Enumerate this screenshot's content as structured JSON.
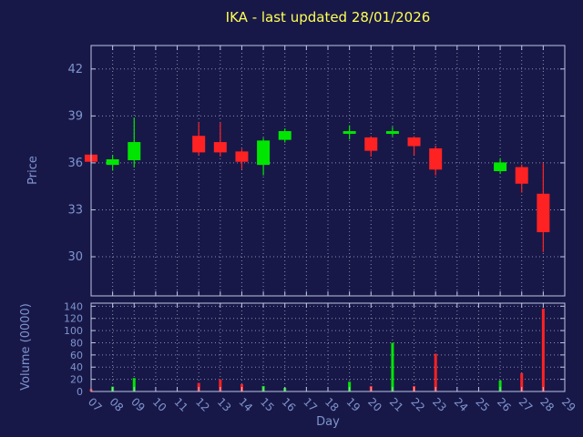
{
  "title": "IKA - last updated 28/01/2026",
  "colors": {
    "background": "#181848",
    "title": "#ffff55",
    "axis_text": "#7d95cf",
    "border": "#bcc6e4",
    "grid": "#9aa2c4",
    "up": "#00e600",
    "down": "#ff2222"
  },
  "chart_data": [
    {
      "type": "candlestick",
      "panel": "price",
      "title": "IKA - last updated 28/01/2026",
      "ylabel": "Price",
      "xlabel": "Day",
      "x_categories": [
        "07",
        "08",
        "09",
        "10",
        "11",
        "12",
        "13",
        "14",
        "15",
        "16",
        "17",
        "18",
        "19",
        "20",
        "21",
        "22",
        "23",
        "24",
        "25",
        "26",
        "27",
        "28",
        "29"
      ],
      "ylim": [
        27.5,
        43.5
      ],
      "y_ticks": [
        30,
        33,
        36,
        39,
        42
      ],
      "grid": true,
      "candles": [
        {
          "day": "07",
          "open": 36.5,
          "high": 36.6,
          "low": 36.0,
          "close": 36.1
        },
        {
          "day": "08",
          "open": 35.9,
          "high": 36.5,
          "low": 35.5,
          "close": 36.2
        },
        {
          "day": "09",
          "open": 36.2,
          "high": 38.9,
          "low": 35.7,
          "close": 37.3
        },
        {
          "day": "12",
          "open": 37.7,
          "high": 38.6,
          "low": 36.5,
          "close": 36.7
        },
        {
          "day": "13",
          "open": 37.3,
          "high": 38.6,
          "low": 36.4,
          "close": 36.7
        },
        {
          "day": "14",
          "open": 36.7,
          "high": 36.9,
          "low": 35.6,
          "close": 36.1
        },
        {
          "day": "15",
          "open": 35.9,
          "high": 37.6,
          "low": 35.2,
          "close": 37.4
        },
        {
          "day": "16",
          "open": 37.5,
          "high": 38.2,
          "low": 37.3,
          "close": 38.0
        },
        {
          "day": "19",
          "open": 37.9,
          "high": 38.4,
          "low": 37.5,
          "close": 38.0
        },
        {
          "day": "20",
          "open": 37.6,
          "high": 37.7,
          "low": 36.4,
          "close": 36.8
        },
        {
          "day": "21",
          "open": 37.9,
          "high": 38.3,
          "low": 37.7,
          "close": 38.0
        },
        {
          "day": "22",
          "open": 37.6,
          "high": 37.7,
          "low": 36.5,
          "close": 37.1
        },
        {
          "day": "23",
          "open": 36.9,
          "high": 37.1,
          "low": 35.2,
          "close": 35.6
        },
        {
          "day": "26",
          "open": 35.5,
          "high": 36.3,
          "low": 35.3,
          "close": 36.0
        },
        {
          "day": "27",
          "open": 35.7,
          "high": 35.9,
          "low": 34.1,
          "close": 34.7
        },
        {
          "day": "28",
          "open": 34.0,
          "high": 36.0,
          "low": 30.3,
          "close": 31.6
        }
      ]
    },
    {
      "type": "bar",
      "panel": "volume",
      "ylabel": "Volume (0000)",
      "ylim": [
        0,
        145
      ],
      "y_ticks": [
        0,
        20,
        40,
        60,
        80,
        100,
        120,
        140
      ],
      "grid": true,
      "bars": [
        {
          "day": "07",
          "value": 4
        },
        {
          "day": "08",
          "value": 8
        },
        {
          "day": "09",
          "value": 22
        },
        {
          "day": "12",
          "value": 14
        },
        {
          "day": "13",
          "value": 20
        },
        {
          "day": "14",
          "value": 12
        },
        {
          "day": "15",
          "value": 9
        },
        {
          "day": "16",
          "value": 6
        },
        {
          "day": "19",
          "value": 16
        },
        {
          "day": "20",
          "value": 9
        },
        {
          "day": "21",
          "value": 80
        },
        {
          "day": "22",
          "value": 9
        },
        {
          "day": "23",
          "value": 62
        },
        {
          "day": "26",
          "value": 18
        },
        {
          "day": "27",
          "value": 30
        },
        {
          "day": "28",
          "value": 136
        }
      ]
    }
  ]
}
